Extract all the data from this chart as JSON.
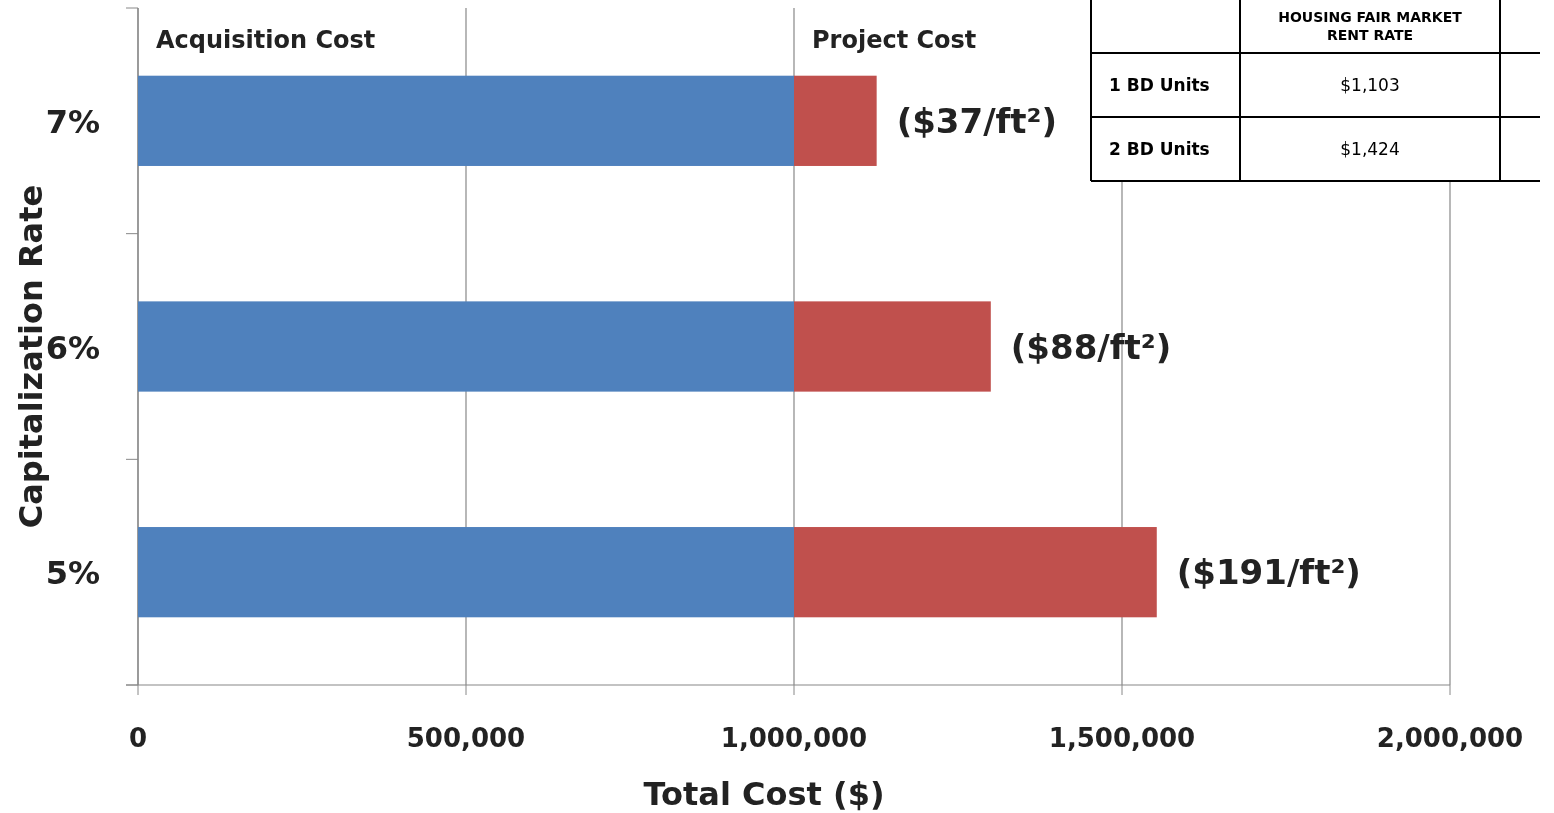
{
  "chart_data": {
    "type": "bar",
    "orientation": "horizontal",
    "stacked": true,
    "xlabel": "Total Cost ($)",
    "ylabel": "Capitalization Rate",
    "categories": [
      "7%",
      "6%",
      "5%"
    ],
    "series": [
      {
        "name": "Acquisition Cost",
        "color": "#4f81bd",
        "values": [
          1000000,
          1000000,
          1000000
        ]
      },
      {
        "name": "Project Cost",
        "color": "#c0504d",
        "values": [
          126000,
          300000,
          553000
        ]
      }
    ],
    "xlim": [
      0,
      2000000
    ],
    "xticks": [
      {
        "value": 0,
        "label": "0"
      },
      {
        "value": 500000,
        "label": "500,000"
      },
      {
        "value": 1000000,
        "label": "1,000,000"
      },
      {
        "value": 1500000,
        "label": "1,500,000"
      },
      {
        "value": 2000000,
        "label": "2,000,000"
      }
    ],
    "grid": "x",
    "annotations": [
      {
        "text": "($37/ft²)",
        "x": 1126000,
        "y": "7%"
      },
      {
        "text": "($88/ft²)",
        "x": 1300000,
        "y": "6%"
      },
      {
        "text": "($191/ft²)",
        "x": 1553000,
        "y": "5%"
      },
      "HOUSING FAIR MARKET RENT RATE",
      "1 BD Units",
      "$1,103",
      "2 BD Units",
      "$1,424"
    ]
  }
}
